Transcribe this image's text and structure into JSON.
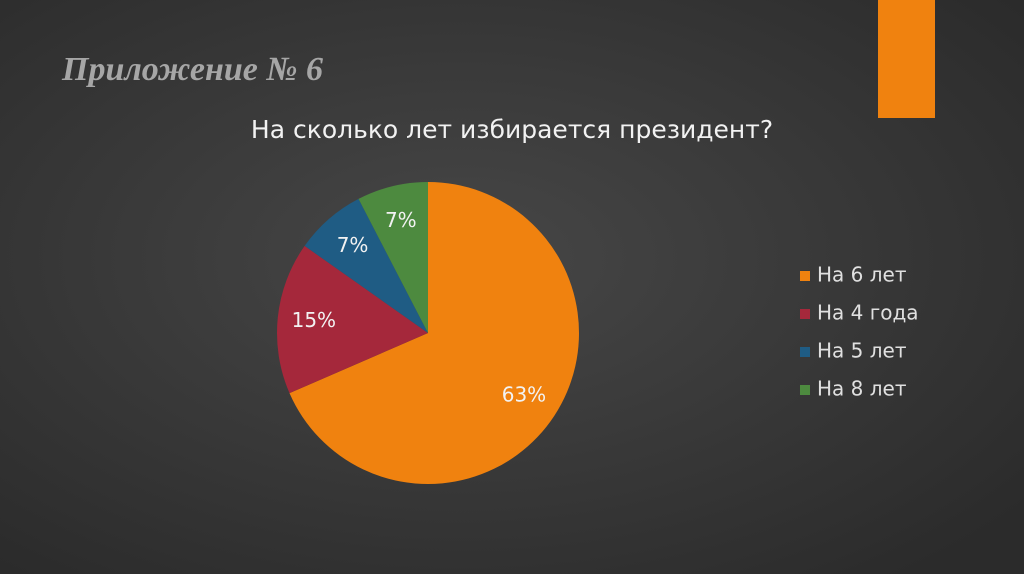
{
  "slide_title": "Приложение № 6",
  "chart_data": {
    "type": "pie",
    "title": "На сколько лет избирается президент?",
    "categories": [
      "На 6 лет",
      "На 4 года",
      "На 5 лет",
      "На 8 лет"
    ],
    "values": [
      63,
      15,
      7,
      7
    ],
    "value_labels": [
      "63%",
      "15%",
      "7%",
      "7%"
    ],
    "colors": [
      "#f0820f",
      "#a5283b",
      "#1f5c84",
      "#4d8a3f"
    ],
    "legend": "right"
  }
}
